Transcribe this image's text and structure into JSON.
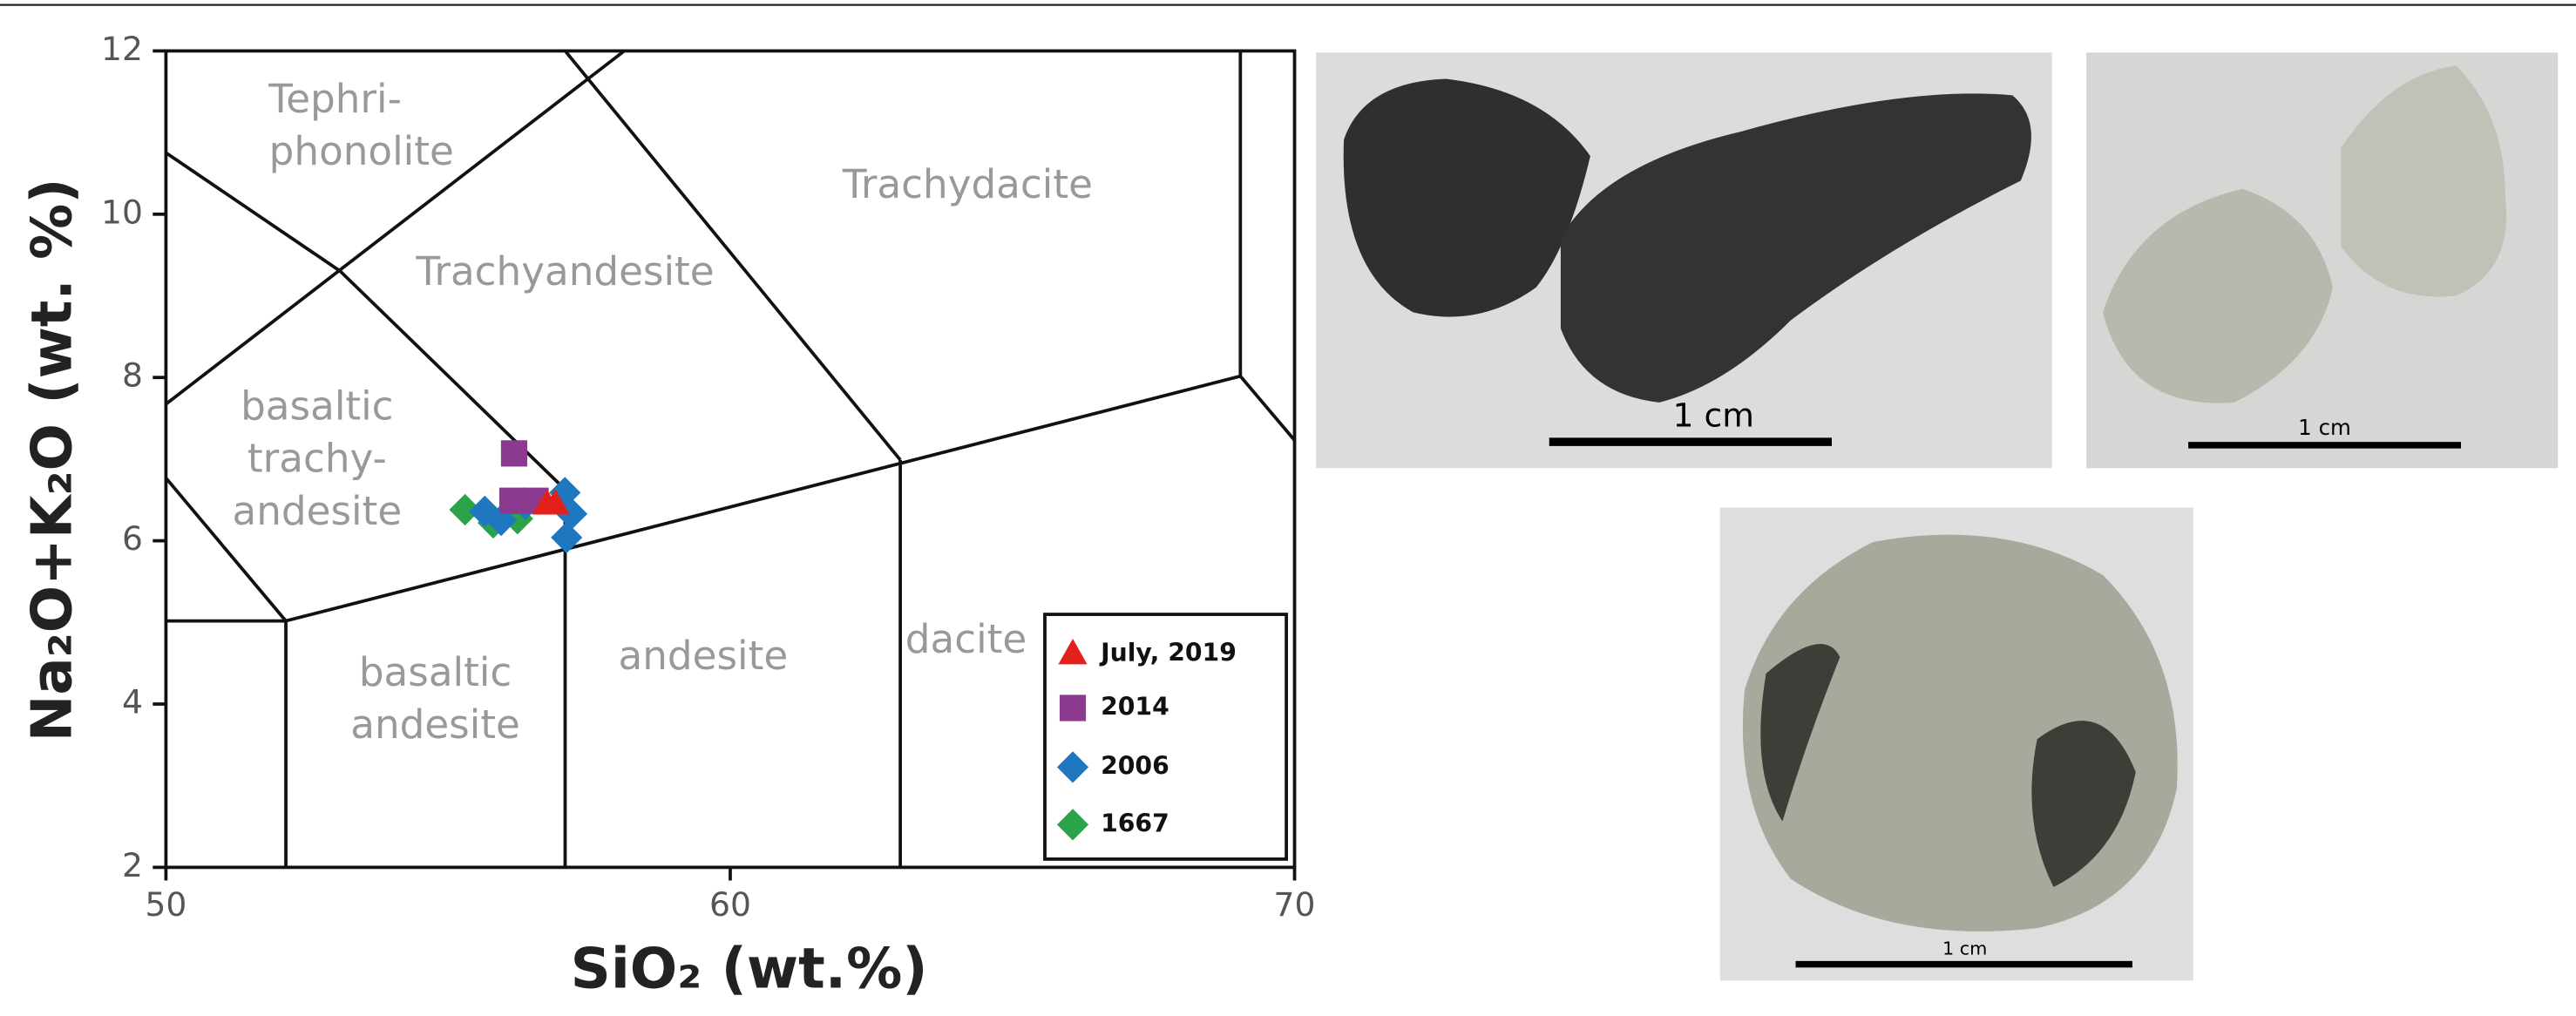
{
  "chart_data": {
    "type": "scatter",
    "xlabel": "SiO₂ (wt.%)",
    "ylabel": "Na₂O+K₂O (wt. %)",
    "xlim": [
      50,
      70
    ],
    "xticks": [
      50,
      60,
      70
    ],
    "ylim": [
      2,
      12
    ],
    "yticks": [
      2,
      4,
      6,
      8,
      10,
      12
    ],
    "grid": false,
    "legend_position": "lower right",
    "field_labels": [
      [
        "Tephri-",
        "phonolite"
      ],
      [
        "Trachydacite"
      ],
      [
        "Trachyandesite"
      ],
      [
        "basaltic",
        "trachy-",
        "andesite"
      ],
      [
        "basaltic",
        "andesite"
      ],
      [
        "andesite"
      ],
      [
        "dacite"
      ]
    ],
    "series": [
      {
        "name": "July, 2019",
        "color": "#e3201b",
        "marker": "triangle",
        "x": [
          56.75,
          56.9
        ],
        "values": [
          6.45,
          6.45
        ]
      },
      {
        "name": "2014",
        "color": "#8b3a8f",
        "marker": "square",
        "x": [
          56.17,
          56.14,
          56.55
        ],
        "values": [
          7.07,
          6.49,
          6.49
        ]
      },
      {
        "name": "2006",
        "color": "#1f77c0",
        "marker": "diamond",
        "x": [
          57.07,
          57.19,
          57.1,
          55.65,
          55.94,
          56.37
        ],
        "values": [
          6.59,
          6.33,
          6.04,
          6.36,
          6.25,
          6.45
        ]
      },
      {
        "name": "1667",
        "color": "#2ca24a",
        "marker": "diamond",
        "x": [
          55.3,
          55.8,
          56.23
        ],
        "values": [
          6.38,
          6.22,
          6.27
        ]
      }
    ]
  },
  "photos": [
    {
      "scale_label": "1 cm"
    },
    {
      "scale_label": "1 cm"
    },
    {
      "scale_label": "1 cm"
    }
  ]
}
